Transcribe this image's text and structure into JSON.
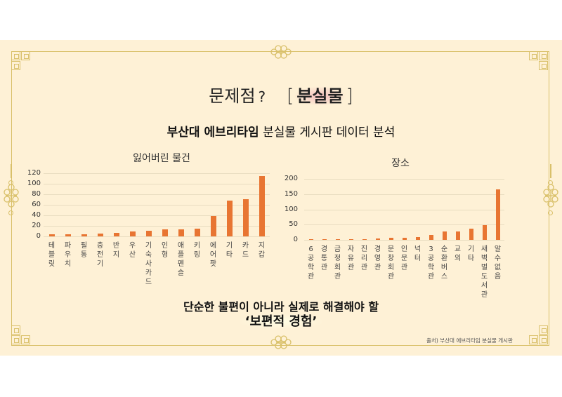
{
  "slide": {
    "title_prefix": "문제점",
    "title_question": "?",
    "title_bracket_open": "[",
    "title_highlight": "분실물",
    "title_bracket_close": "]",
    "subtitle_bold": "부산대 에브리타임",
    "subtitle_rest": " 분실물 게시판 데이터 분석",
    "conclusion_line1": "단순한 불편이 아니라 실제로 해결해야 할",
    "conclusion_line2": "‘보편적 경험’",
    "source_note": "출처) 부산대 에브리타임 분실물 게시판"
  },
  "colors": {
    "background": "#fef1d6",
    "frame": "#d9c06a",
    "bar": "#e87532",
    "highlight": "#f0aab4"
  },
  "chart_data": [
    {
      "type": "bar",
      "title": "잃어버린 물건",
      "xlabel": "",
      "ylabel": "",
      "ylim": [
        0,
        120
      ],
      "yticks": [
        0,
        20,
        40,
        60,
        80,
        100,
        120
      ],
      "grid": true,
      "legend": "none",
      "categories": [
        "테블릿",
        "파우치",
        "필통",
        "충전기",
        "반지",
        "우산",
        "기숙사카드",
        "인형",
        "애플펜슬",
        "키링",
        "에어팟",
        "기타",
        "카드",
        "지갑"
      ],
      "values": [
        4,
        4,
        4,
        6,
        7,
        9,
        11,
        13,
        14,
        15,
        39,
        68,
        71,
        115
      ]
    },
    {
      "type": "bar",
      "title": "장소",
      "xlabel": "",
      "ylabel": "",
      "ylim": [
        0,
        200
      ],
      "yticks": [
        0,
        50,
        100,
        150,
        200
      ],
      "grid": true,
      "legend": "none",
      "categories": [
        "6공학관",
        "경통관",
        "금정회관",
        "자유관",
        "진리관",
        "경영관",
        "문창회관",
        "인문관",
        "넉터",
        "3공학관",
        "순환버스",
        "교외",
        "기타",
        "새벽벌도서관",
        "알수없음"
      ],
      "values": [
        3,
        3,
        3,
        3,
        3,
        4,
        7,
        8,
        9,
        15,
        27,
        28,
        37,
        48,
        165
      ]
    }
  ]
}
